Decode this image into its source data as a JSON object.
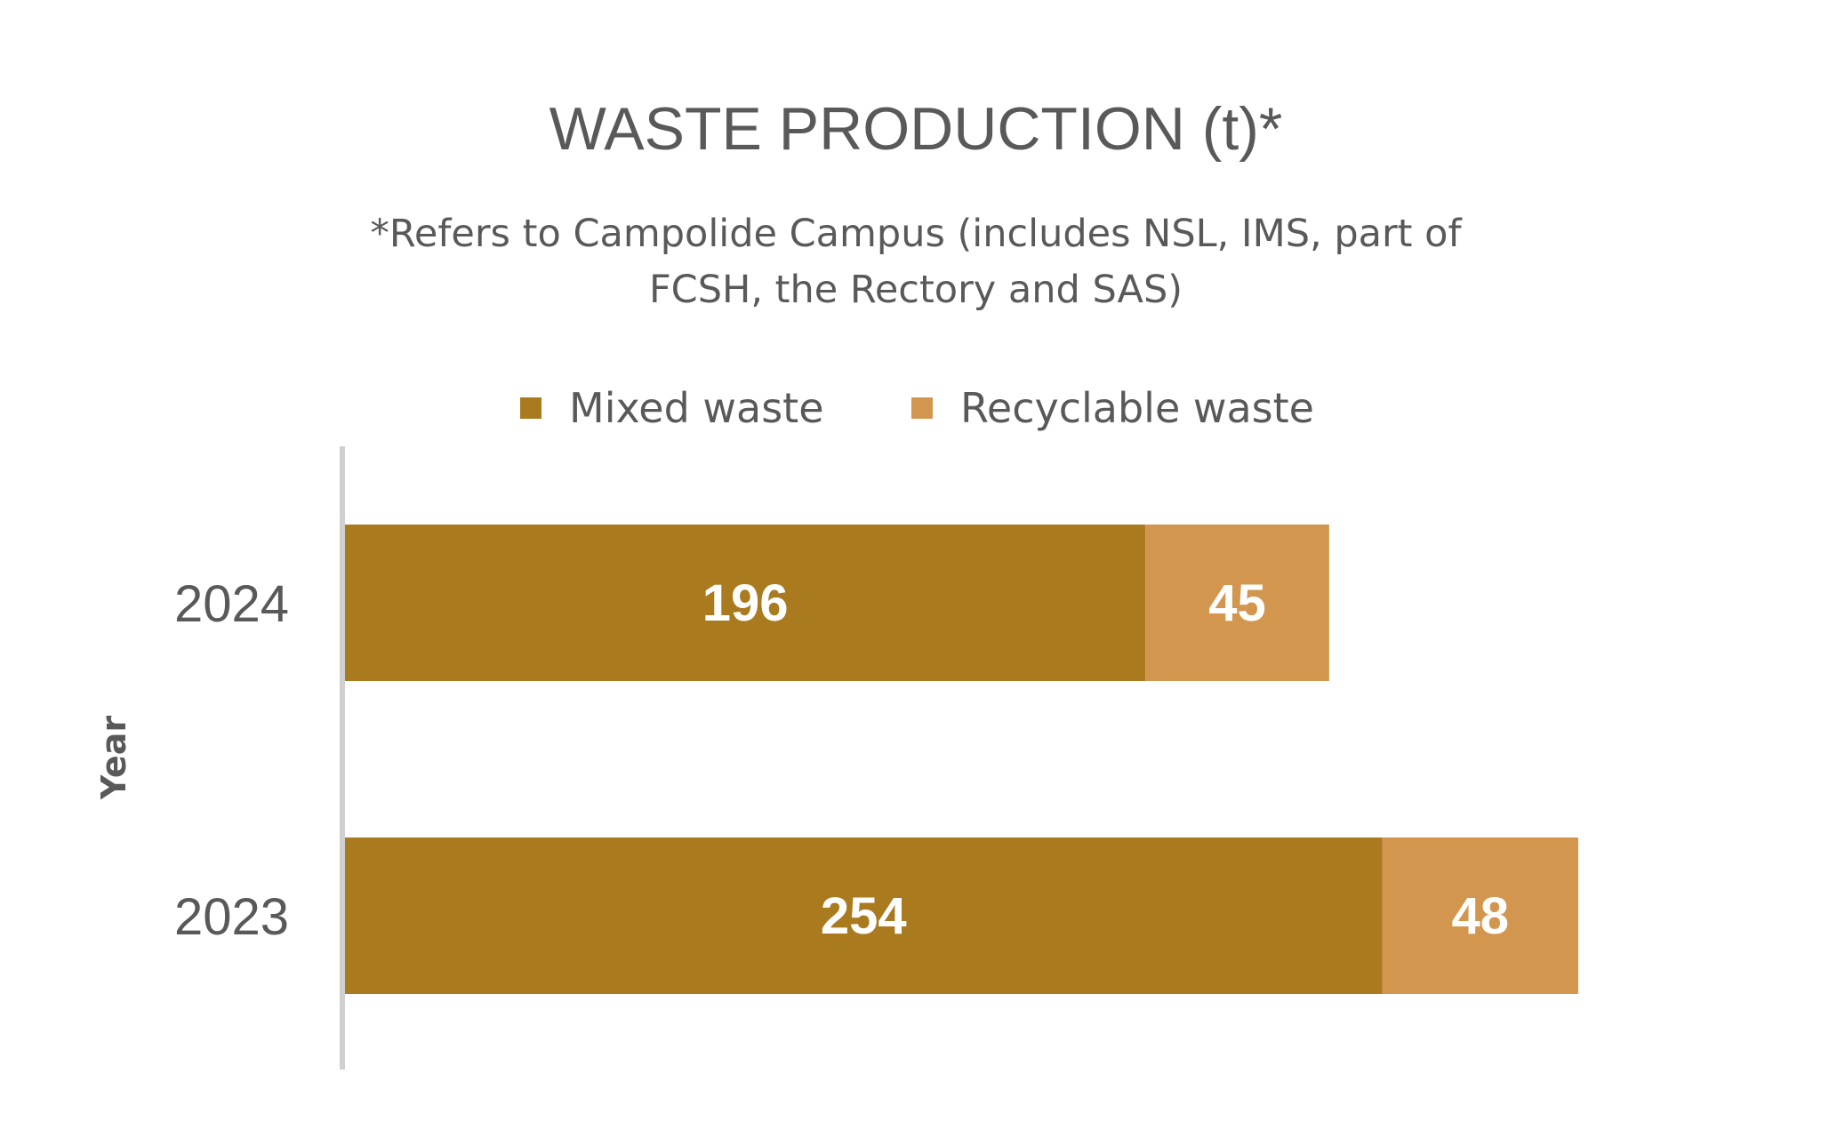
{
  "chart_data": {
    "type": "bar",
    "orientation": "horizontal",
    "stacked": true,
    "title": "WASTE PRODUCTION (t)*",
    "subtitle_lines": [
      "*Refers to Campolide Campus (includes NSL, IMS, part of",
      "FCSH, the Rectory and SAS)"
    ],
    "ylabel": "Year",
    "xlabel": "",
    "categories": [
      "2024",
      "2023"
    ],
    "series": [
      {
        "name": "Mixed waste",
        "values": [
          196,
          254
        ],
        "color": "#AA7A1F"
      },
      {
        "name": "Recyclable waste",
        "values": [
          45,
          48
        ],
        "color": "#D3964F"
      }
    ],
    "xlim": [
      0,
      302
    ],
    "legend_position": "top",
    "grid": false,
    "axis_color": "#D0D0D0"
  }
}
